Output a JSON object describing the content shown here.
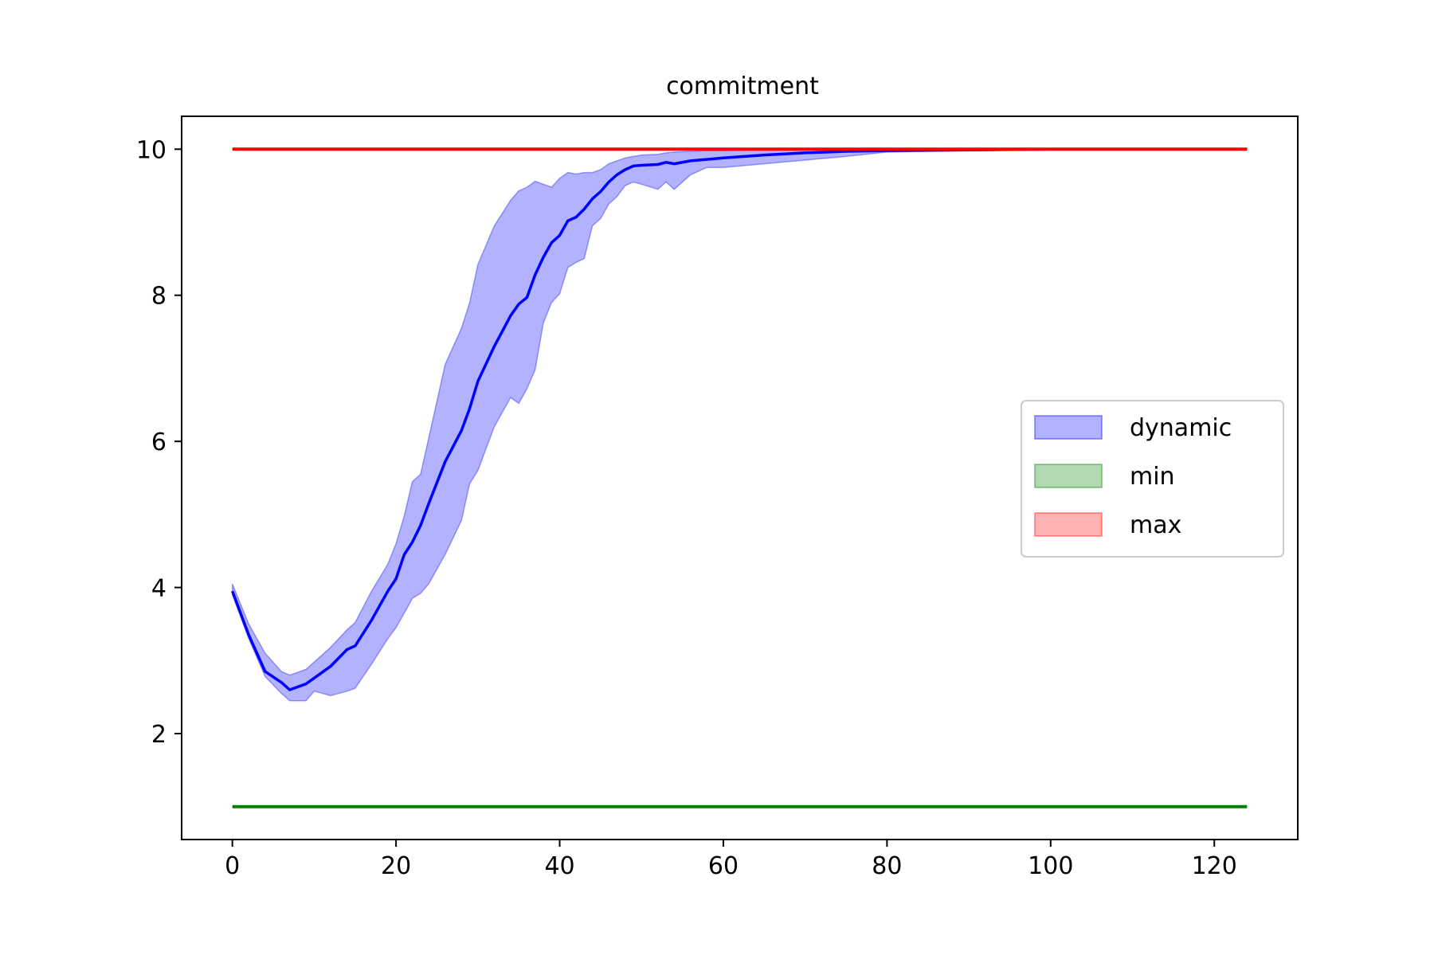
{
  "chart_data": {
    "type": "line",
    "title": "commitment",
    "xlabel": "",
    "ylabel": "",
    "xlim": [
      -6.2,
      130.2
    ],
    "ylim": [
      0.55,
      10.45
    ],
    "xticks": [
      0,
      20,
      40,
      60,
      80,
      100,
      120
    ],
    "yticks": [
      2,
      4,
      6,
      8,
      10
    ],
    "grid": false,
    "legend": {
      "placement": "center-right",
      "entries": [
        {
          "label": "dynamic",
          "color": "#0000ff"
        },
        {
          "label": "min",
          "color": "#008000"
        },
        {
          "label": "max",
          "color": "#ff0000"
        }
      ]
    },
    "series": [
      {
        "name": "dynamic",
        "color": "#0000ff",
        "x": [
          0,
          2,
          4,
          6,
          7,
          9,
          10,
          12,
          14,
          15,
          17,
          19,
          20,
          21,
          22,
          23,
          24,
          26,
          28,
          29,
          30,
          32,
          34,
          35,
          36,
          37,
          38,
          39,
          40,
          41,
          42,
          43,
          44,
          45,
          46,
          47,
          48,
          49,
          50,
          52,
          53,
          54,
          56,
          58,
          60,
          65,
          70,
          75,
          80,
          90,
          100,
          110,
          124
        ],
        "mean": [
          3.95,
          3.35,
          2.85,
          2.7,
          2.6,
          2.68,
          2.76,
          2.92,
          3.15,
          3.2,
          3.55,
          3.95,
          4.12,
          4.45,
          4.62,
          4.85,
          5.15,
          5.72,
          6.15,
          6.45,
          6.82,
          7.3,
          7.72,
          7.88,
          7.97,
          8.28,
          8.52,
          8.72,
          8.82,
          9.02,
          9.07,
          9.18,
          9.32,
          9.42,
          9.55,
          9.65,
          9.72,
          9.77,
          9.78,
          9.79,
          9.82,
          9.8,
          9.84,
          9.86,
          9.88,
          9.92,
          9.95,
          9.97,
          9.98,
          9.99,
          10.0,
          10.0,
          10.0
        ],
        "lower": [
          3.9,
          3.3,
          2.78,
          2.55,
          2.45,
          2.45,
          2.58,
          2.52,
          2.58,
          2.62,
          2.95,
          3.3,
          3.45,
          3.65,
          3.85,
          3.92,
          4.05,
          4.45,
          4.92,
          5.42,
          5.6,
          6.2,
          6.6,
          6.52,
          6.72,
          6.98,
          7.62,
          7.9,
          8.02,
          8.38,
          8.45,
          8.5,
          8.95,
          9.05,
          9.25,
          9.35,
          9.5,
          9.55,
          9.52,
          9.45,
          9.55,
          9.45,
          9.65,
          9.75,
          9.75,
          9.8,
          9.85,
          9.9,
          9.96,
          9.98,
          9.99,
          10.0,
          10.0
        ],
        "upper": [
          4.05,
          3.5,
          3.1,
          2.85,
          2.8,
          2.88,
          2.98,
          3.18,
          3.42,
          3.52,
          3.95,
          4.32,
          4.6,
          4.98,
          5.45,
          5.55,
          6.05,
          7.05,
          7.55,
          7.9,
          8.42,
          8.95,
          9.3,
          9.43,
          9.48,
          9.56,
          9.52,
          9.48,
          9.6,
          9.68,
          9.66,
          9.68,
          9.68,
          9.72,
          9.8,
          9.84,
          9.88,
          9.9,
          9.92,
          9.93,
          9.95,
          9.96,
          9.97,
          9.98,
          9.98,
          9.99,
          10.0,
          10.0,
          10.0,
          10.0,
          10.0,
          10.0,
          10.0
        ]
      },
      {
        "name": "min",
        "color": "#008000",
        "x": [
          0,
          124
        ],
        "values": [
          1,
          1
        ]
      },
      {
        "name": "max",
        "color": "#ff0000",
        "x": [
          0,
          124
        ],
        "values": [
          10,
          10
        ]
      }
    ]
  }
}
